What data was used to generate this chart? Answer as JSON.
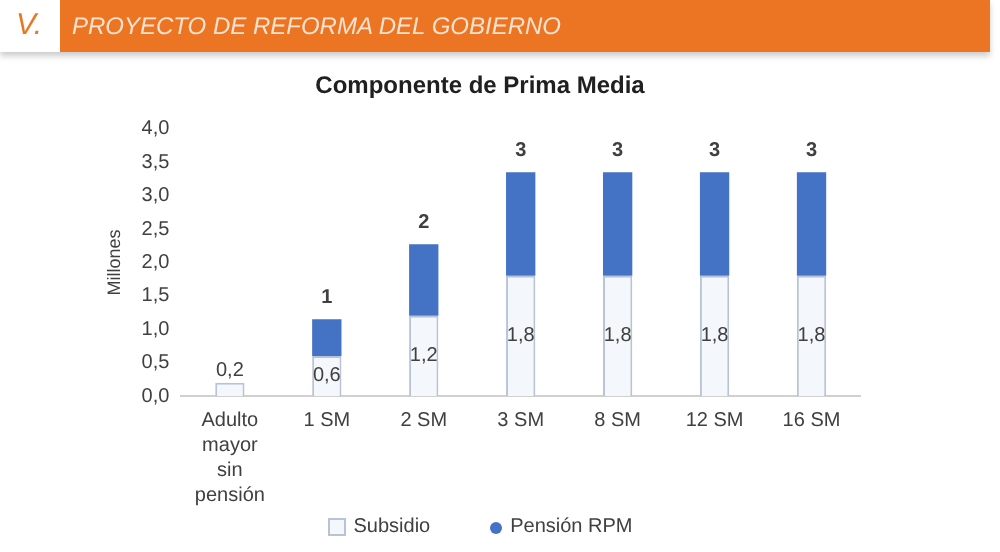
{
  "chart_data": {
    "type": "bar",
    "title": "Componente de Prima Media",
    "ylabel": "Millones",
    "annotations": [
      "V.",
      "PROYECTO DE REFORMA DEL GOBIERNO"
    ],
    "categories": [
      "Adulto mayor sin pensión",
      "1 SM",
      "2 SM",
      "3 SM",
      "8 SM",
      "12 SM",
      "16 SM"
    ],
    "stacked": true,
    "series": [
      {
        "name": "Subsidio",
        "color": "#f4f7fb",
        "values": [
          0.2,
          0.6,
          1.2,
          1.8,
          1.8,
          1.8,
          1.8
        ],
        "value_labels": [
          "0,2",
          "0,6",
          "1,2",
          "1,8",
          "1,8",
          "1,8",
          "1,8"
        ]
      },
      {
        "name": "Pensión RPM",
        "color": "#4472c4",
        "values": [
          null,
          0.55,
          1.07,
          1.55,
          1.55,
          1.55,
          1.55
        ]
      }
    ],
    "totals": [
      null,
      "1",
      "2",
      "3",
      "3",
      "3",
      "3"
    ],
    "ylim": [
      0,
      4
    ],
    "yticks": [
      {
        "value": 0,
        "label": "0,0"
      },
      {
        "value": 0.5,
        "label": "0,5"
      },
      {
        "value": 1,
        "label": "1,0"
      },
      {
        "value": 1.5,
        "label": "1,5"
      },
      {
        "value": 2,
        "label": "2,0"
      },
      {
        "value": 2.5,
        "label": "2,5"
      },
      {
        "value": 3,
        "label": "3,0"
      },
      {
        "value": 3.5,
        "label": "3,5"
      },
      {
        "value": 4,
        "label": "4,0"
      }
    ],
    "grid": false,
    "legend": "bottom"
  }
}
